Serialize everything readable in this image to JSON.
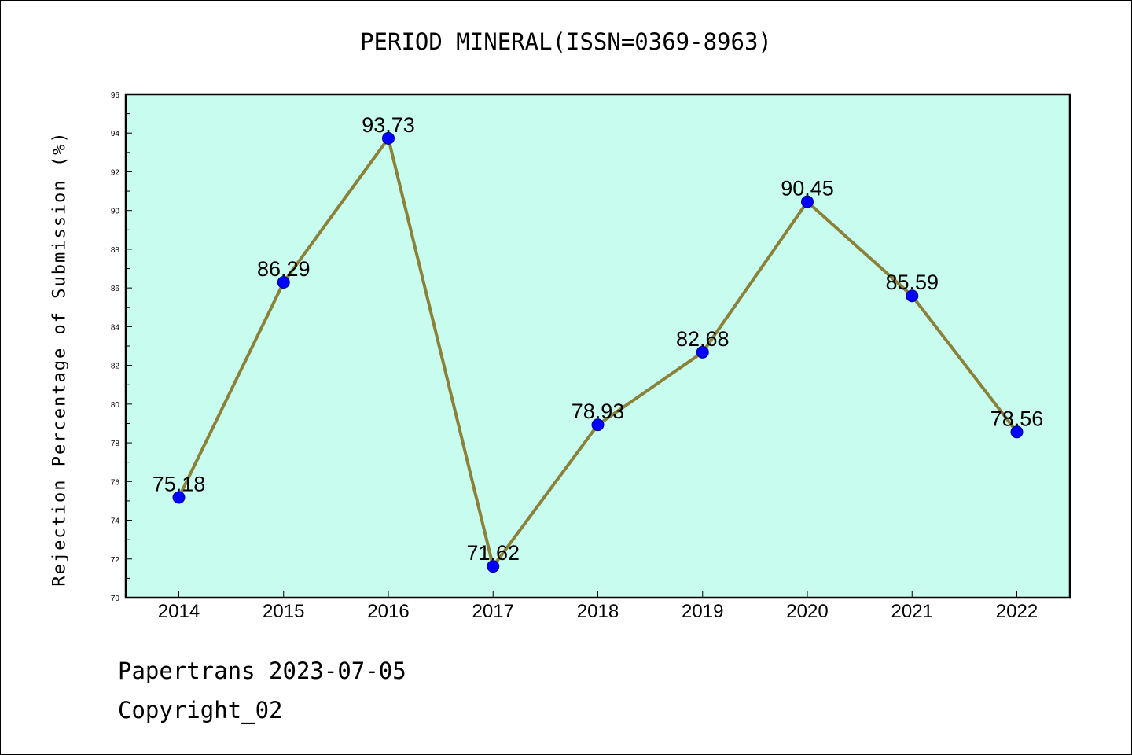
{
  "chart_data": {
    "type": "line",
    "title": "PERIOD MINERAL(ISSN=0369-8963)",
    "xlabel": "",
    "ylabel": "Rejection Percentage of Submission (%)",
    "categories": [
      "2014",
      "2015",
      "2016",
      "2017",
      "2018",
      "2019",
      "2020",
      "2021",
      "2022"
    ],
    "series": [
      {
        "values": [
          75.18,
          86.29,
          93.73,
          71.62,
          78.93,
          82.68,
          90.45,
          85.59,
          78.56
        ]
      }
    ],
    "data_labels": [
      "75.18",
      "86.29",
      "93.73",
      "71.62",
      "78.93",
      "82.68",
      "90.45",
      "85.59",
      "78.56"
    ],
    "ylim": [
      70,
      96
    ],
    "yticks": [
      70,
      72,
      74,
      76,
      78,
      80,
      82,
      84,
      86,
      88,
      90,
      92,
      94,
      96
    ],
    "grid": false,
    "colors": {
      "plot_background": "#c8fcee",
      "line": "#8b8139",
      "marker": "#0000ff"
    }
  },
  "footer": {
    "line1": "Papertrans 2023-07-05",
    "line2": "Copyright_02"
  }
}
